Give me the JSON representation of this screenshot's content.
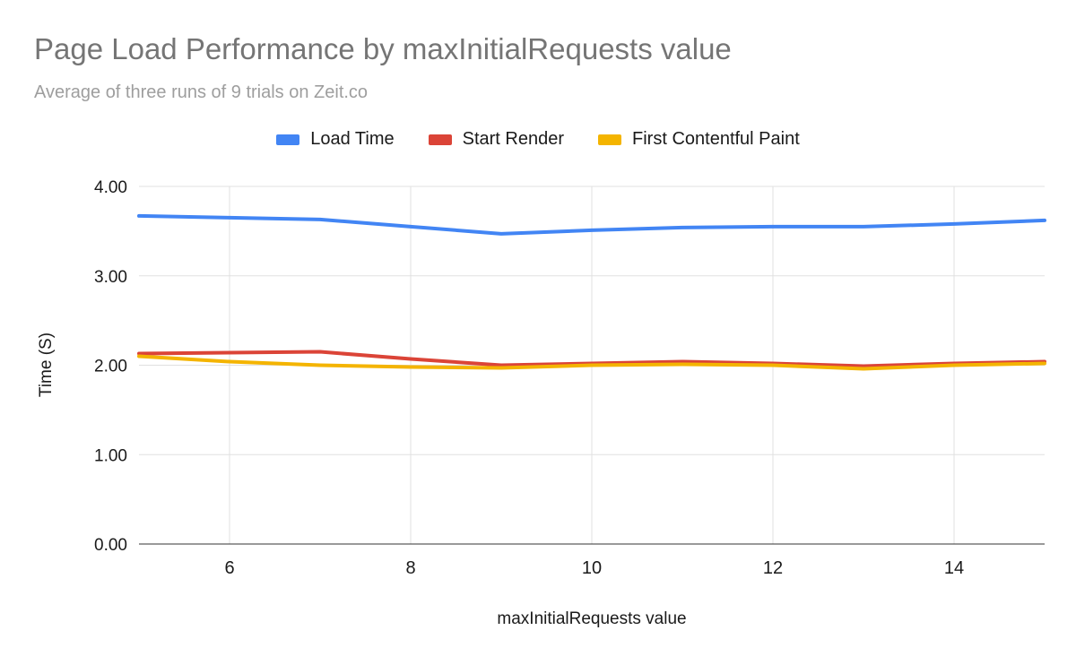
{
  "chart_data": {
    "type": "line",
    "title": "Page Load Performance by maxInitialRequests value",
    "subtitle": "Average of three runs of 9 trials on Zeit.co",
    "xlabel": "maxInitialRequests value",
    "ylabel": "Time (S)",
    "x": [
      5,
      6,
      7,
      8,
      9,
      10,
      11,
      12,
      13,
      14,
      15
    ],
    "series": [
      {
        "name": "Load Time",
        "color": "#4285F4",
        "values": [
          3.67,
          3.65,
          3.63,
          3.55,
          3.47,
          3.51,
          3.54,
          3.55,
          3.55,
          3.58,
          3.62
        ]
      },
      {
        "name": "Start Render",
        "color": "#DB4437",
        "values": [
          2.13,
          2.14,
          2.15,
          2.07,
          2.0,
          2.02,
          2.04,
          2.02,
          1.99,
          2.02,
          2.04
        ]
      },
      {
        "name": "First Contentful Paint",
        "color": "#F4B400",
        "values": [
          2.1,
          2.04,
          2.0,
          1.98,
          1.97,
          2.0,
          2.01,
          2.0,
          1.96,
          2.0,
          2.02
        ]
      }
    ],
    "xlim": [
      5,
      15
    ],
    "ylim": [
      0,
      4
    ],
    "xticks": [
      6,
      8,
      10,
      12,
      14
    ],
    "yticks": [
      0,
      1,
      2,
      3,
      4
    ],
    "ytick_decimals": 2,
    "grid": true,
    "legend_position": "top"
  },
  "colors": {
    "title": "#757575",
    "subtitle": "#9e9e9e",
    "grid": "#e0e0e0",
    "axis": "#333333",
    "tick_text": "#1a1a1a",
    "background": "#ffffff"
  }
}
